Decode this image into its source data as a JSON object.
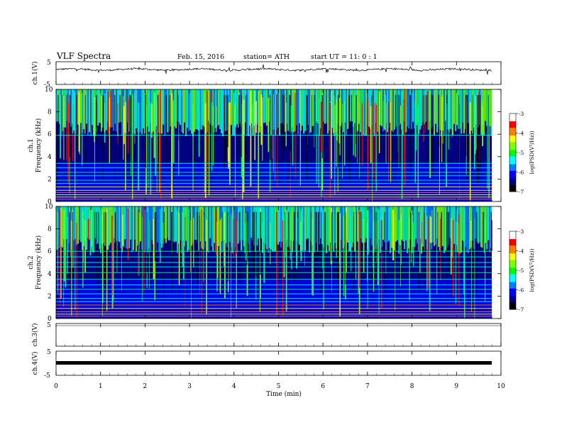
{
  "header": {
    "title": "VLF  Spectra",
    "date": "Feb. 15, 2016",
    "station": "station= ATH",
    "start": "start  UT  =    11: 0  : 1"
  },
  "chart_data": [
    {
      "type": "line",
      "panel": "ch1-waveform",
      "ylabel": "ch.1(V)",
      "ylim": [
        -5,
        5
      ],
      "y_ticks": [
        "5",
        "-5"
      ],
      "baseline": 0,
      "description_values": "noisy waveform centered near 0 V with spikes"
    },
    {
      "type": "heatmap",
      "panel": "ch1-spectrogram",
      "ylabel_channel": "ch.1",
      "ylabel": "Frequency  (kHz)",
      "ylim": [
        0,
        10
      ],
      "y_ticks": [
        "0",
        "2",
        "4",
        "6",
        "8",
        "10"
      ],
      "colorbar": {
        "label": "log(PSD(V²/Hz))",
        "range": [
          -7,
          -3
        ],
        "ticks": [
          "-3",
          "-4",
          "-5",
          "-6",
          "-7"
        ]
      }
    },
    {
      "type": "heatmap",
      "panel": "ch2-spectrogram",
      "ylabel_channel": "ch.2",
      "ylabel": "Frequency  (kHz)",
      "ylim": [
        0,
        10
      ],
      "y_ticks": [
        "0",
        "2",
        "4",
        "6",
        "8",
        "10"
      ],
      "colorbar": {
        "label": "log(PSD(V²/Hz))",
        "range": [
          -7,
          -3
        ],
        "ticks": [
          "-3",
          "-4",
          "-5",
          "-6",
          "-7"
        ]
      }
    },
    {
      "type": "line",
      "panel": "ch3-waveform",
      "ylabel": "ch.3(V)",
      "ylim": [
        -5,
        5
      ],
      "y_ticks": [
        "5",
        "-5"
      ],
      "values_constant": 0
    },
    {
      "type": "line",
      "panel": "ch4-waveform",
      "ylabel": "ch.4(V)",
      "ylim": [
        -5,
        5
      ],
      "y_ticks": [
        "5",
        "-5"
      ],
      "values_constant": 0
    }
  ],
  "xaxis": {
    "label": "Time  (min)",
    "range": [
      0,
      10
    ],
    "ticks": [
      "0",
      "1",
      "2",
      "3",
      "4",
      "5",
      "6",
      "7",
      "8",
      "9",
      "10"
    ]
  },
  "colors": {
    "colormap": [
      "#0000a0",
      "#0000ff",
      "#0080ff",
      "#00ffff",
      "#00ff80",
      "#80ff00",
      "#ffff00",
      "#ff8000",
      "#ff0000",
      "#ffffff"
    ]
  }
}
